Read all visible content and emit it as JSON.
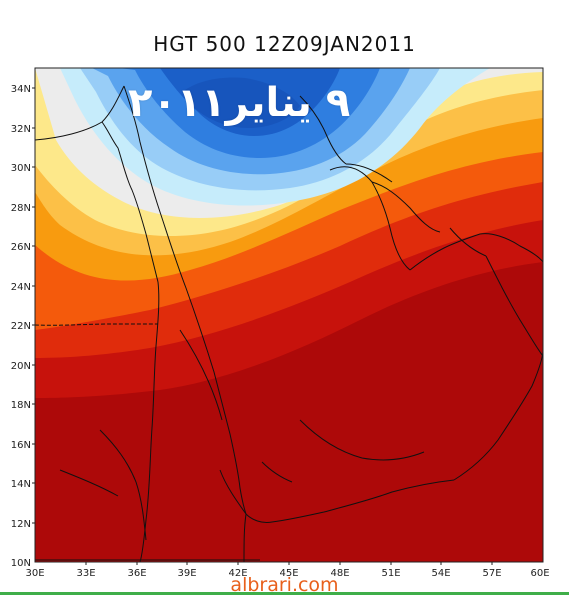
{
  "title": "HGT 500 12Z09JAN2011",
  "overlay_text": "٩ يناير٢٠١١",
  "watermark": "albrari.com",
  "colors": {
    "band_1": "#1b5fc8",
    "band_2": "#2f7ee0",
    "band_3": "#5aa3ee",
    "band_4": "#98cdf7",
    "band_5": "#c6ecfb",
    "band_6": "#ececec",
    "band_7": "#fde88a",
    "band_8": "#fcc047",
    "band_9": "#f89b0f",
    "band_10": "#f45a0c",
    "band_11": "#e02c0c",
    "band_12": "#c7120c",
    "band_13": "#ad0909",
    "watermark": "#e8601c",
    "bottom_rule": "#3fae49"
  },
  "lat_labels": [
    "34N",
    "32N",
    "30N",
    "28N",
    "26N",
    "24N",
    "22N",
    "20N",
    "18N",
    "16N",
    "14N",
    "12N",
    "10N"
  ],
  "lon_labels": [
    "30E",
    "33E",
    "36E",
    "39E",
    "42E",
    "45E",
    "48E",
    "51E",
    "54E",
    "57E",
    "60E"
  ]
}
